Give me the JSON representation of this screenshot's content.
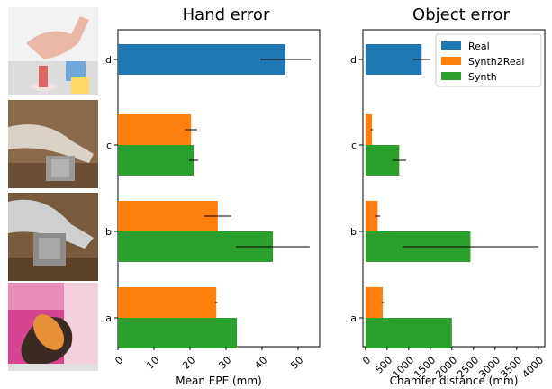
{
  "photos": [
    {
      "label": "d",
      "description": "hand-with-block-photo"
    },
    {
      "label": "c",
      "description": "synthetic-hand-grasping-cube-photo"
    },
    {
      "label": "b",
      "description": "synthetic-hand-holding-box-photo"
    },
    {
      "label": "a",
      "description": "hand-holding-object-photo"
    }
  ],
  "colors": {
    "Real": "#1f77b4",
    "Synth2Real": "#ff7f0e",
    "Synth": "#2ca02c"
  },
  "chart_data": [
    {
      "type": "bar",
      "orientation": "horizontal",
      "title": "Hand error",
      "xlabel": "Mean EPE (mm)",
      "ylabel": "",
      "xlim": [
        0,
        56
      ],
      "xticks": [
        0,
        10,
        20,
        30,
        40,
        50
      ],
      "categories": [
        "a",
        "b",
        "c",
        "d"
      ],
      "series": [
        {
          "name": "Real",
          "values": [
            null,
            null,
            null,
            46.5
          ],
          "errors": [
            null,
            null,
            null,
            7.0
          ]
        },
        {
          "name": "Synth2Real",
          "values": [
            27.3,
            27.7,
            20.3,
            null
          ],
          "errors": [
            0.3,
            3.8,
            1.7,
            null
          ]
        },
        {
          "name": "Synth",
          "values": [
            33.0,
            43.0,
            21.0,
            null
          ],
          "errors": [
            null,
            10.2,
            1.3,
            null
          ]
        }
      ],
      "grid": false,
      "legend": "none"
    },
    {
      "type": "bar",
      "orientation": "horizontal",
      "title": "Object error",
      "xlabel": "Chamfer distance (mm)",
      "ylabel": "",
      "xlim": [
        -60,
        4150
      ],
      "xticks": [
        0,
        500,
        1000,
        1500,
        2000,
        2500,
        3000,
        3500,
        4000
      ],
      "categories": [
        "a",
        "b",
        "c",
        "d"
      ],
      "series": [
        {
          "name": "Real",
          "values": [
            null,
            null,
            null,
            1300
          ],
          "errors": [
            null,
            null,
            null,
            200
          ]
        },
        {
          "name": "Synth2Real",
          "values": [
            400,
            280,
            150,
            null
          ],
          "errors": [
            30,
            60,
            20,
            null
          ]
        },
        {
          "name": "Synth",
          "values": [
            2000,
            2430,
            780,
            null
          ],
          "errors": [
            null,
            1570,
            160,
            null
          ]
        }
      ],
      "grid": false,
      "legend": "top-right"
    }
  ]
}
